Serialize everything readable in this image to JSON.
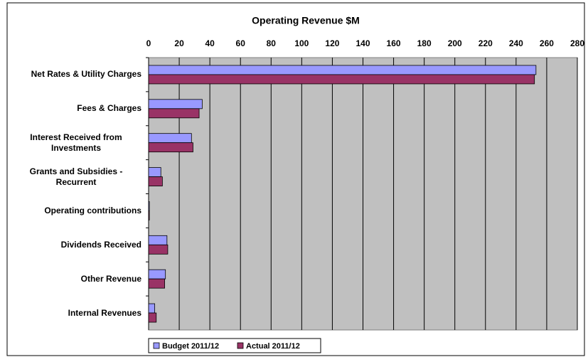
{
  "chart_data": {
    "type": "bar",
    "orientation": "horizontal",
    "title": "Operating Revenue   $M",
    "categories": [
      "Net Rates & Utility Charges",
      "Fees & Charges",
      "Interest Received from Investments",
      "Grants and Subsidies - Recurrent",
      "Operating contributions",
      "Dividends Received",
      "Other Revenue",
      "Internal Revenues"
    ],
    "series": [
      {
        "name": "Budget 2011/12",
        "color": "#9999ff",
        "values": [
          253,
          35,
          28,
          8,
          0.5,
          12,
          11,
          4
        ]
      },
      {
        "name": "Actual 2011/12",
        "color": "#993366",
        "values": [
          252,
          33,
          29,
          9,
          0.5,
          12.5,
          10.5,
          5
        ]
      }
    ],
    "xlim": [
      0,
      280
    ],
    "xticks": [
      0,
      20,
      40,
      60,
      80,
      100,
      120,
      140,
      160,
      180,
      200,
      220,
      240,
      260,
      280
    ],
    "grid": true,
    "legend": "bottom"
  }
}
